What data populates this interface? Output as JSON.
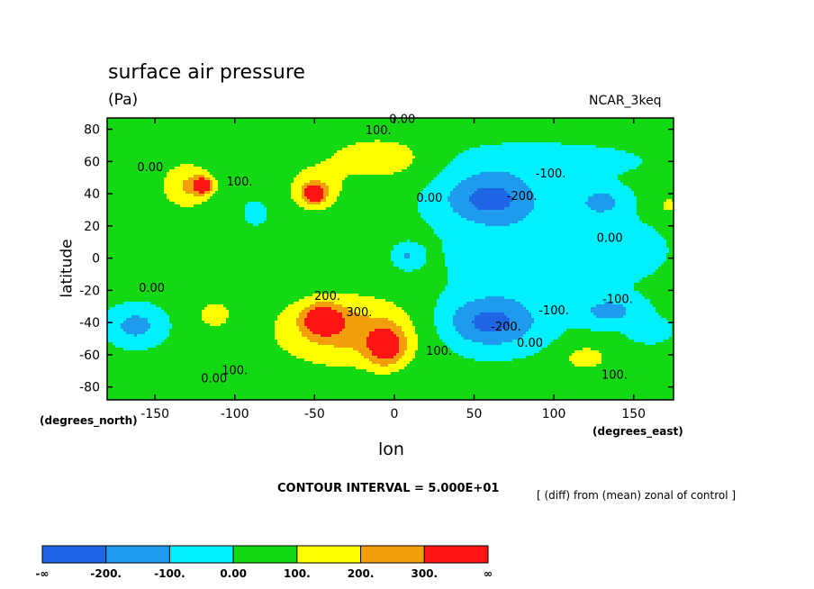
{
  "chart_data": {
    "type": "heatmap",
    "title": "surface air pressure",
    "units": "(Pa)",
    "model": "NCAR_3keq",
    "xlabel": "lon",
    "ylabel": "latitude",
    "x_axis_note": "(degrees_east)",
    "y_axis_note": "(degrees_north)",
    "xlim": [
      -180,
      175
    ],
    "ylim": [
      -88,
      87
    ],
    "xticks": [
      "-150",
      "-100",
      "-50",
      "0",
      "50",
      "100",
      "150"
    ],
    "xtick_values": [
      -150,
      -100,
      -50,
      0,
      50,
      100,
      150
    ],
    "yticks": [
      "80",
      "60",
      "40",
      "20",
      "0",
      "-20",
      "-40",
      "-60",
      "-80"
    ],
    "ytick_values": [
      80,
      60,
      40,
      20,
      0,
      -20,
      -40,
      -60,
      -80
    ],
    "contour_interval_text": "CONTOUR INTERVAL = 5.000E+01",
    "note": "[ (diff) from (mean) zonal of control ]",
    "field_background": 25,
    "features": [
      {
        "lon": 60,
        "lat": 37,
        "value": -260,
        "rx": 30,
        "ry": 16
      },
      {
        "lon": 60,
        "lat": -40,
        "value": -260,
        "rx": 30,
        "ry": 16
      },
      {
        "lon": 130,
        "lat": 35,
        "value": -160,
        "rx": 15,
        "ry": 9
      },
      {
        "lon": 135,
        "lat": -33,
        "value": -160,
        "rx": 20,
        "ry": 9
      },
      {
        "lon": 160,
        "lat": -45,
        "value": -100,
        "rx": 12,
        "ry": 7
      },
      {
        "lon": -162,
        "lat": -42,
        "value": -170,
        "rx": 16,
        "ry": 11
      },
      {
        "lon": 8,
        "lat": 1,
        "value": -130,
        "rx": 8,
        "ry": 7
      },
      {
        "lon": -87,
        "lat": 28,
        "value": -60,
        "rx": 8,
        "ry": 8
      },
      {
        "lon": 80,
        "lat": 0,
        "value": -80,
        "rx": 45,
        "ry": 26
      },
      {
        "lon": 130,
        "lat": 5,
        "value": -70,
        "rx": 40,
        "ry": 20
      },
      {
        "lon": 90,
        "lat": 60,
        "value": -60,
        "rx": 70,
        "ry": 12
      },
      {
        "lon": -130,
        "lat": 45,
        "value": 180,
        "rx": 16,
        "ry": 14
      },
      {
        "lon": -120,
        "lat": 45,
        "value": 350,
        "rx": 6,
        "ry": 5
      },
      {
        "lon": -50,
        "lat": 42,
        "value": 180,
        "rx": 16,
        "ry": 13
      },
      {
        "lon": -50,
        "lat": 40,
        "value": 350,
        "rx": 6,
        "ry": 5
      },
      {
        "lon": -30,
        "lat": -45,
        "value": 210,
        "rx": 45,
        "ry": 22
      },
      {
        "lon": -45,
        "lat": -38,
        "value": 320,
        "rx": 12,
        "ry": 9
      },
      {
        "lon": -5,
        "lat": -55,
        "value": 300,
        "rx": 12,
        "ry": 12
      },
      {
        "lon": -10,
        "lat": 62,
        "value": 140,
        "rx": 35,
        "ry": 14
      },
      {
        "lon": -113,
        "lat": -35,
        "value": 140,
        "rx": 10,
        "ry": 8
      },
      {
        "lon": 120,
        "lat": -62,
        "value": 130,
        "rx": 14,
        "ry": 8
      },
      {
        "lon": 172,
        "lat": 33,
        "value": 130,
        "rx": 5,
        "ry": 5
      }
    ],
    "contour_labels": [
      {
        "text": "0.00",
        "lon": 5,
        "lat": 84
      },
      {
        "text": "100.",
        "lon": -10,
        "lat": 77
      },
      {
        "text": "0.00",
        "lon": -153,
        "lat": 54
      },
      {
        "text": "100.",
        "lon": -97,
        "lat": 45
      },
      {
        "text": "0.00",
        "lon": 22,
        "lat": 35
      },
      {
        "text": "-200.",
        "lon": 80,
        "lat": 36
      },
      {
        "text": "-100.",
        "lon": 98,
        "lat": 50
      },
      {
        "text": "0.00",
        "lon": 135,
        "lat": 10
      },
      {
        "text": "0.00",
        "lon": -152,
        "lat": -21
      },
      {
        "text": "200.",
        "lon": -42,
        "lat": -26
      },
      {
        "text": "300.",
        "lon": -22,
        "lat": -36
      },
      {
        "text": "-100.",
        "lon": 100,
        "lat": -35
      },
      {
        "text": "-100.",
        "lon": 140,
        "lat": -28
      },
      {
        "text": "-200.",
        "lon": 70,
        "lat": -45
      },
      {
        "text": "0.00",
        "lon": 85,
        "lat": -55
      },
      {
        "text": "100.",
        "lon": 28,
        "lat": -60
      },
      {
        "text": "100.",
        "lon": -100,
        "lat": -72
      },
      {
        "text": "0.00",
        "lon": -113,
        "lat": -77
      },
      {
        "text": "100.",
        "lon": 138,
        "lat": -75
      }
    ]
  },
  "colorbar": {
    "colors": [
      "#1f66e6",
      "#1f9bed",
      "#00f0ff",
      "#12d912",
      "#ffff00",
      "#f29f0b",
      "#ff1414"
    ],
    "labels": [
      "-∞",
      "-200.",
      "-100.",
      "0.00",
      "100.",
      "200.",
      "300.",
      "∞"
    ]
  }
}
